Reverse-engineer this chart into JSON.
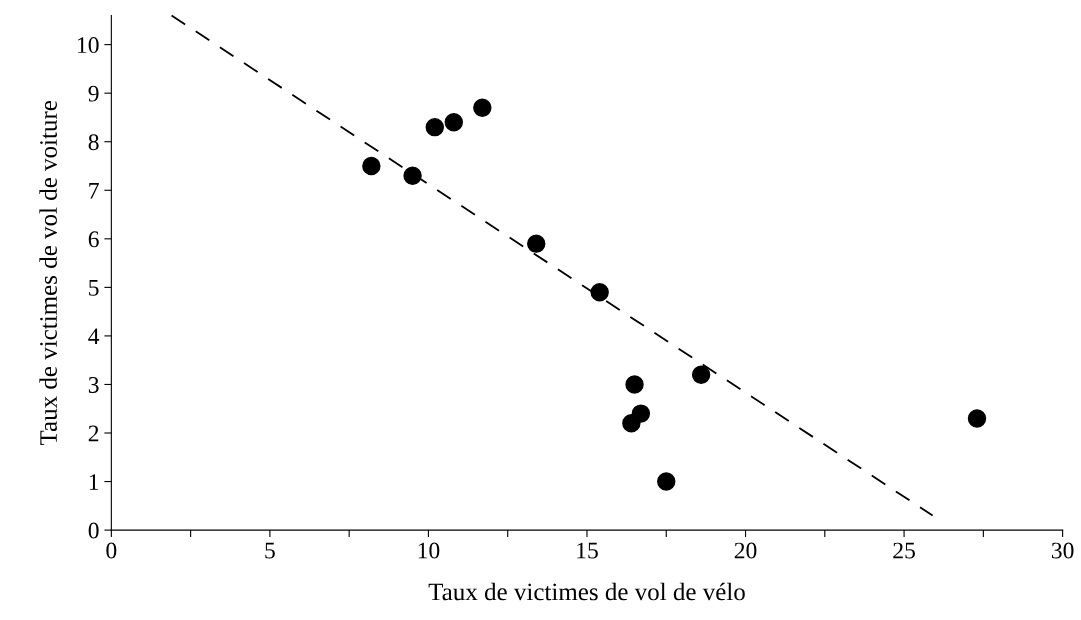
{
  "chart_data": {
    "type": "scatter",
    "xlabel": "Taux de victimes de vol de vélo",
    "ylabel": "Taux de victimes de vol de voiture",
    "xlim": [
      0,
      30
    ],
    "ylim": [
      0,
      10.6
    ],
    "xticks": [
      0,
      {
        "value": 2.5,
        "label": null
      },
      5,
      {
        "value": 7.5,
        "label": null
      },
      10,
      {
        "value": 12.5,
        "label": null
      },
      15,
      {
        "value": 17.5,
        "label": null
      },
      20,
      {
        "value": 22.5,
        "label": null
      },
      25,
      {
        "value": 27.5,
        "label": null
      },
      30
    ],
    "yticks": [
      0,
      1,
      2,
      3,
      4,
      5,
      6,
      7,
      8,
      9,
      10
    ],
    "grid": false,
    "legend": false,
    "series": [
      {
        "color": "#000000",
        "marker": "circle",
        "x": [
          8.2,
          9.5,
          10.2,
          10.8,
          11.7,
          13.4,
          15.4,
          16.5,
          16.4,
          16.7,
          17.5,
          18.6,
          27.3
        ],
        "values": [
          7.5,
          7.3,
          8.3,
          8.4,
          8.7,
          5.9,
          4.9,
          3.0,
          2.2,
          2.4,
          1.0,
          3.2,
          2.3
        ]
      },
      {
        "type": "line",
        "color": "#000000",
        "line_style": "dashed",
        "marker": "none",
        "x": [
          1.9,
          25.9
        ],
        "values": [
          10.6,
          0.3
        ]
      }
    ]
  }
}
